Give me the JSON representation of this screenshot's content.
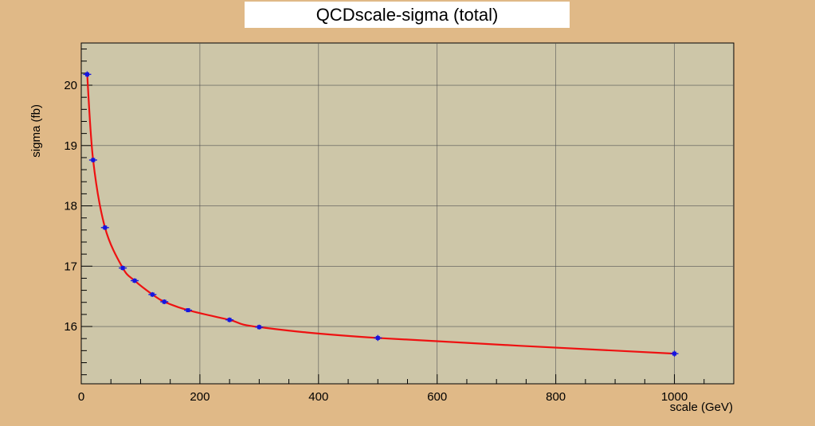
{
  "chart_data": {
    "type": "scatter",
    "title": "QCDscale-sigma (total)",
    "xlabel": "scale (GeV)",
    "ylabel": "sigma (fb)",
    "xlim": [
      0,
      1100
    ],
    "ylim": [
      15.05,
      20.7
    ],
    "grid": true,
    "x_ticks": [
      0,
      200,
      400,
      600,
      800,
      1000
    ],
    "y_ticks": [
      16,
      17,
      18,
      19,
      20
    ],
    "series": [
      {
        "x": [
          10,
          20,
          40,
          70,
          90,
          120,
          140,
          180,
          250,
          300,
          500,
          1000
        ],
        "values": [
          20.18,
          18.76,
          17.64,
          16.97,
          16.76,
          16.53,
          16.41,
          16.27,
          16.11,
          15.99,
          15.81,
          15.55
        ],
        "errors": [
          0.05,
          0.04,
          0.04,
          0.04,
          0.04,
          0.04,
          0.04,
          0.03,
          0.04,
          0.04,
          0.05,
          0.05
        ]
      }
    ],
    "fit_color": "#ee1111",
    "marker_color": "#1515e0",
    "plot_background": "#cdc6a8",
    "frame_background": "#e0b987"
  }
}
